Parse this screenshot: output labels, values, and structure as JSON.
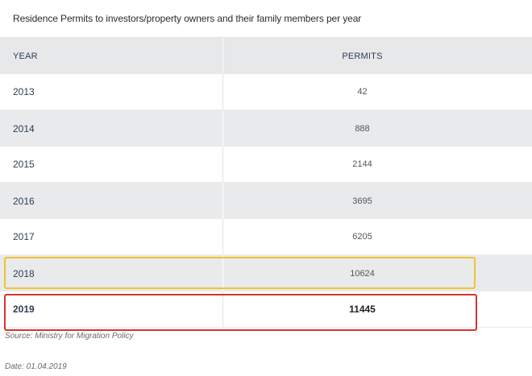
{
  "table": {
    "title": "Residence Permits to investors/property owners and their family members per year",
    "headers": {
      "year": "YEAR",
      "permits": "PERMITS"
    },
    "rows": [
      {
        "year": "2013",
        "permits": "42"
      },
      {
        "year": "2014",
        "permits": "888"
      },
      {
        "year": "2015",
        "permits": "2144"
      },
      {
        "year": "2016",
        "permits": "3695"
      },
      {
        "year": "2017",
        "permits": "6205"
      },
      {
        "year": "2018",
        "permits": "10624"
      },
      {
        "year": "2019",
        "permits": "11445"
      }
    ]
  },
  "footer": {
    "source": "Source: Ministry for Migration Policy",
    "date": "Date: 01.04.2019"
  },
  "highlights": {
    "2018_color": "#f1c232",
    "2019_color": "#d9342b"
  }
}
